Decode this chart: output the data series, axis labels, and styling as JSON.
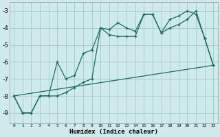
{
  "xlabel": "Humidex (Indice chaleur)",
  "background_color": "#ceeaea",
  "grid_color": "#aacccc",
  "line_color": "#1a6b5a",
  "xlim": [
    -0.5,
    23.5
  ],
  "ylim": [
    -9.6,
    -2.5
  ],
  "yticks": [
    -9,
    -8,
    -7,
    -6,
    -5,
    -4,
    -3
  ],
  "xticks": [
    0,
    1,
    2,
    3,
    4,
    5,
    6,
    7,
    8,
    9,
    10,
    11,
    12,
    13,
    14,
    15,
    16,
    17,
    18,
    19,
    20,
    21,
    22,
    23
  ],
  "line1_x": [
    0,
    1,
    2,
    3,
    4,
    5,
    6,
    7,
    8,
    9,
    10,
    11,
    12,
    13,
    14,
    15,
    16,
    17,
    18,
    19,
    20,
    21,
    22,
    23
  ],
  "line1_y": [
    -8.0,
    -9.0,
    -9.0,
    -8.0,
    -8.0,
    -6.0,
    -7.0,
    -6.8,
    -5.5,
    -5.3,
    -4.0,
    -4.1,
    -3.7,
    -4.0,
    -4.2,
    -3.2,
    -3.2,
    -4.3,
    -3.5,
    -3.3,
    -3.0,
    -3.2,
    -4.6,
    -6.2
  ],
  "line2_x": [
    0,
    1,
    2,
    3,
    4,
    5,
    6,
    7,
    8,
    9,
    10,
    11,
    12,
    13,
    14,
    15,
    16,
    17,
    18,
    19,
    20,
    21,
    22,
    23
  ],
  "line2_y": [
    -8.0,
    -9.0,
    -9.0,
    -8.0,
    -8.0,
    -8.0,
    -7.8,
    -7.5,
    -7.2,
    -7.0,
    -4.0,
    -4.4,
    -4.5,
    -4.5,
    -4.5,
    -3.2,
    -3.2,
    -4.3,
    -4.0,
    -3.8,
    -3.5,
    -3.0,
    -4.6,
    -6.2
  ],
  "line3_x": [
    0,
    23
  ],
  "line3_y": [
    -8.0,
    -6.2
  ],
  "marker": "+"
}
